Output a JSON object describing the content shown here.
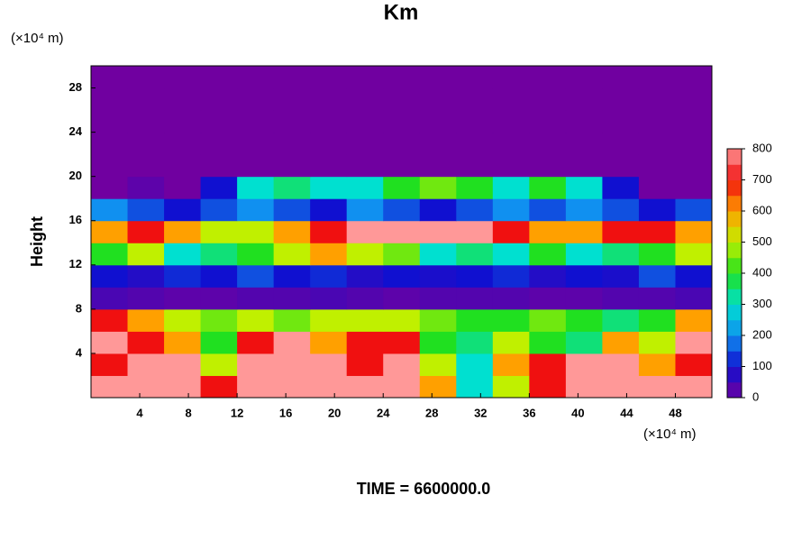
{
  "chart_data": {
    "type": "heatmap",
    "title": "Km",
    "ylabel": "Height",
    "xunit": "(×10⁴ m)",
    "yunit": "(×10⁴ m)",
    "footer": "TIME = 6600000.0",
    "xlim": [
      0,
      51
    ],
    "ylim": [
      0,
      30
    ],
    "xticks": [
      4,
      8,
      12,
      16,
      20,
      24,
      28,
      32,
      36,
      40,
      44,
      48
    ],
    "yticks": [
      4,
      8,
      12,
      16,
      20,
      24,
      28
    ],
    "clim": [
      0,
      800
    ],
    "cticks": [
      0,
      100,
      200,
      300,
      400,
      500,
      600,
      700,
      800
    ],
    "colorscale": [
      "#7000a0",
      "#1010d0",
      "#1090f0",
      "#00e0d0",
      "#20e020",
      "#c0f000",
      "#ffa000",
      "#f01010",
      "#ff9898"
    ],
    "z": [
      [
        800,
        800,
        800,
        700,
        800,
        800,
        800,
        800,
        800,
        600,
        300,
        500,
        700,
        800,
        800,
        800,
        800
      ],
      [
        700,
        800,
        800,
        500,
        800,
        800,
        800,
        700,
        800,
        500,
        300,
        600,
        700,
        800,
        800,
        600,
        700
      ],
      [
        800,
        700,
        600,
        400,
        700,
        800,
        600,
        700,
        700,
        400,
        350,
        500,
        400,
        350,
        600,
        500,
        800
      ],
      [
        700,
        600,
        500,
        450,
        500,
        450,
        500,
        500,
        500,
        450,
        400,
        400,
        450,
        400,
        350,
        400,
        600
      ],
      [
        40,
        30,
        20,
        20,
        30,
        30,
        40,
        30,
        20,
        30,
        30,
        30,
        20,
        20,
        30,
        30,
        40
      ],
      [
        100,
        80,
        120,
        100,
        150,
        100,
        120,
        80,
        100,
        90,
        100,
        120,
        80,
        100,
        90,
        150,
        100
      ],
      [
        400,
        500,
        300,
        350,
        400,
        500,
        600,
        500,
        450,
        300,
        350,
        300,
        400,
        300,
        350,
        400,
        500
      ],
      [
        600,
        700,
        600,
        500,
        500,
        600,
        700,
        800,
        800,
        800,
        800,
        700,
        600,
        600,
        700,
        700,
        600
      ],
      [
        200,
        150,
        100,
        150,
        200,
        150,
        100,
        200,
        150,
        100,
        150,
        200,
        150,
        200,
        150,
        100,
        150
      ],
      [
        0,
        20,
        0,
        100,
        300,
        350,
        300,
        300,
        400,
        450,
        400,
        300,
        400,
        300,
        100,
        0,
        0
      ],
      [
        0,
        0,
        0,
        0,
        0,
        0,
        0,
        0,
        0,
        0,
        0,
        0,
        0,
        0,
        0,
        0,
        0
      ],
      [
        0,
        0,
        0,
        0,
        0,
        0,
        0,
        0,
        0,
        0,
        0,
        0,
        0,
        0,
        0,
        0,
        0
      ],
      [
        0,
        0,
        0,
        0,
        0,
        0,
        0,
        0,
        0,
        0,
        0,
        0,
        0,
        0,
        0,
        0,
        0
      ],
      [
        0,
        0,
        0,
        0,
        0,
        0,
        0,
        0,
        0,
        0,
        0,
        0,
        0,
        0,
        0,
        0,
        0
      ],
      [
        0,
        0,
        0,
        0,
        0,
        0,
        0,
        0,
        0,
        0,
        0,
        0,
        0,
        0,
        0,
        0,
        0
      ]
    ]
  }
}
